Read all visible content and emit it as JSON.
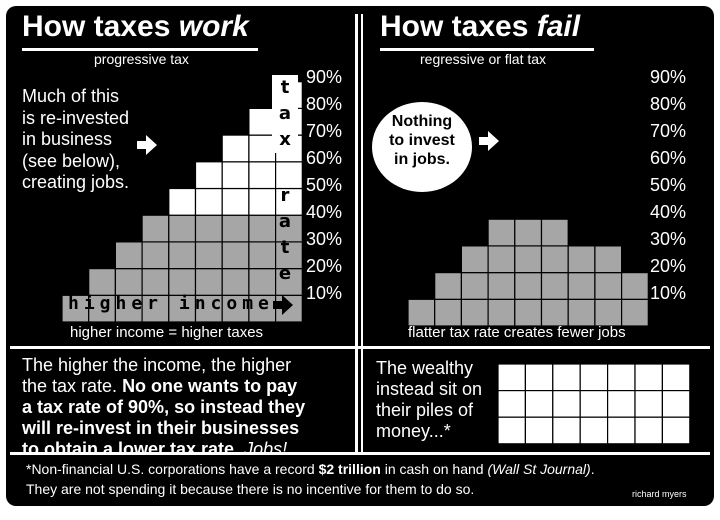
{
  "left": {
    "title_prefix": "How taxes ",
    "title_emph": "work",
    "subtitle": "progressive tax",
    "reinvest_text": [
      "Much of this",
      "is re-invested",
      "in business",
      "(see below),",
      "creating jobs."
    ],
    "vertical_tax": [
      "t",
      "a",
      "x"
    ],
    "vertical_rate": [
      "r",
      "a",
      "t",
      "e"
    ],
    "axis_label": "higher income",
    "caption": "higher income = higher taxes"
  },
  "right": {
    "title_prefix": "How taxes ",
    "title_emph": "fail",
    "subtitle": "regressive or flat tax",
    "circle_text": [
      "Nothing",
      "to invest",
      "in jobs."
    ],
    "caption": "flatter tax rate creates fewer jobs"
  },
  "percent_labels": [
    "90%",
    "80%",
    "70%",
    "60%",
    "50%",
    "40%",
    "30%",
    "20%",
    "10%"
  ],
  "bottom_left": {
    "line1": "The higher the income, the higher",
    "line2_plain": "the tax rate. ",
    "line2_bold": "No one wants to pay",
    "line3": "a tax rate of 90%, so instead they",
    "line4": "will re-invest in their businesses",
    "line5_bold": "to obtain a lower tax rate",
    "line5_plain": ". ",
    "line5_italic": "Jobs!"
  },
  "bottom_right": {
    "lines": [
      "The wealthy",
      "instead sit on",
      "their piles of",
      "money...*"
    ]
  },
  "footer": {
    "line1_a": "*Non-financial U.S. corporations have a record ",
    "line1_bold": "$2 trillion",
    "line1_b": " in cash on hand ",
    "line1_italic": "(Wall St Journal)",
    "line1_c": ".",
    "line2": "They are not spending it because there is no incentive for them to do so.",
    "credit": "richard myers"
  },
  "colors": {
    "background": "#000000",
    "text": "#ffffff",
    "cell_gray": "#a6a6a6",
    "cell_white": "#ffffff"
  }
}
